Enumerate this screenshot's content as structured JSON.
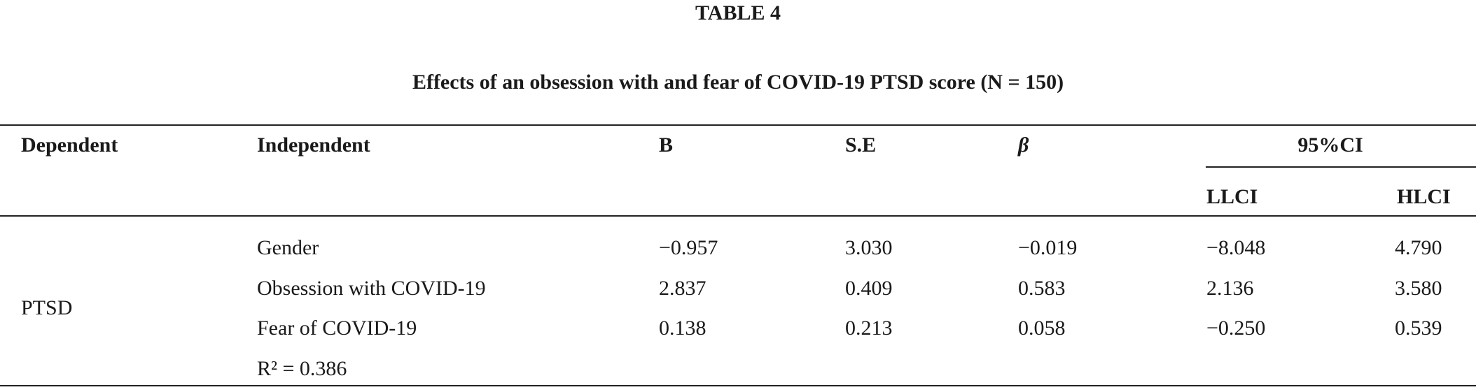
{
  "header": {
    "label": "TABLE 4",
    "title": "Effects of an obsession with and fear of COVID-19 PTSD score (N = 150)"
  },
  "table": {
    "columns": [
      "Dependent",
      "Independent",
      "B",
      "S.E",
      "β"
    ],
    "group_header": "95%CI",
    "subcolumns": [
      "LLCI",
      "HLCI"
    ],
    "dependent": "PTSD",
    "rows": [
      [
        "Gender",
        "−0.957",
        "3.030",
        "−0.019",
        "−8.048",
        "4.790"
      ],
      [
        "Obsession with COVID-19",
        "2.837",
        "0.409",
        "0.583",
        "2.136",
        "3.580"
      ],
      [
        "Fear of COVID-19",
        "0.138",
        "0.213",
        "0.058",
        "−0.250",
        "0.539"
      ]
    ],
    "r_squared": "R² = 0.386"
  }
}
